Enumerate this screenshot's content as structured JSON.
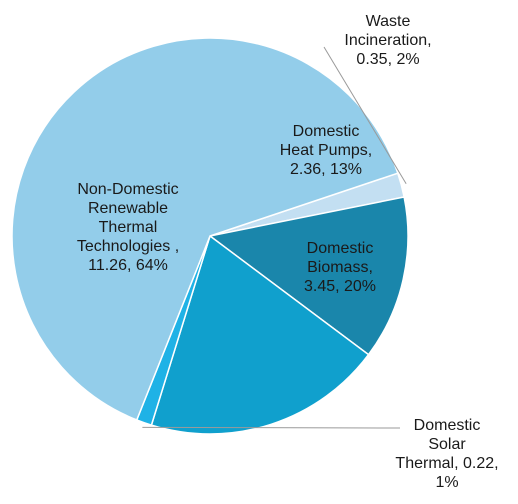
{
  "chart_data": {
    "type": "pie",
    "slices": [
      {
        "name": "Waste Incineration",
        "value": 0.35,
        "percent": 2,
        "color": "#c3dff2",
        "label_lines": [
          "Waste",
          "Incineration,",
          "0.35, 2%"
        ]
      },
      {
        "name": "Domestic Heat Pumps",
        "value": 2.36,
        "percent": 13,
        "color": "#1a86ab",
        "label_lines": [
          "Domestic",
          "Heat Pumps,",
          "2.36, 13%"
        ]
      },
      {
        "name": "Domestic Biomass",
        "value": 3.45,
        "percent": 20,
        "color": "#10a0cd",
        "label_lines": [
          "Domestic",
          "Biomass,",
          "3.45, 20%"
        ]
      },
      {
        "name": "Domestic Solar Thermal",
        "value": 0.22,
        "percent": 1,
        "color": "#1fb2e6",
        "label_lines": [
          "Domestic",
          "Solar",
          "Thermal, 0.22,",
          "1%"
        ]
      },
      {
        "name": "Non-Domestic Renewable Thermal Technologies",
        "value": 11.26,
        "percent": 64,
        "color": "#93cdea",
        "label_lines": [
          "Non-Domestic",
          "Renewable",
          "Thermal",
          "Technologies ,",
          "11.26, 64%"
        ]
      }
    ]
  }
}
